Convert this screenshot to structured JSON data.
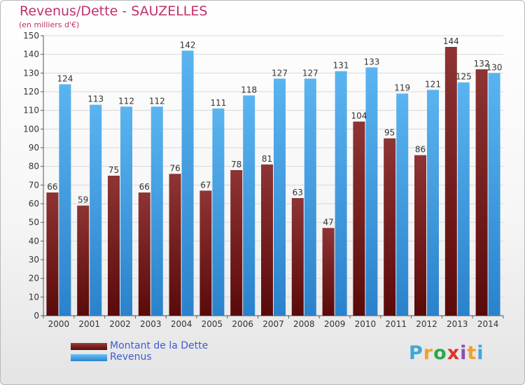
{
  "header": {
    "title": "Revenus/Dette - SAUZELLES",
    "subtitle": "(en milliers d'€)"
  },
  "legend": [
    {
      "label": "Montant de la Dette",
      "color": "#7a1c1c"
    },
    {
      "label": "Revenus",
      "color": "#4aa3e6"
    }
  ],
  "logo": {
    "letters": [
      "P",
      "r",
      "o",
      "x",
      "i",
      "t",
      "i"
    ],
    "colors": [
      "#3fa7d6",
      "#f0a12a",
      "#2aa84a",
      "#e0322a",
      "#8a4fb0",
      "#f0a12a",
      "#3fa7d6"
    ]
  },
  "chart_data": {
    "type": "bar",
    "title": "Revenus/Dette - SAUZELLES",
    "ylabel": "(en milliers d'€)",
    "categories": [
      "2000",
      "2001",
      "2002",
      "2003",
      "2004",
      "2005",
      "2006",
      "2007",
      "2008",
      "2009",
      "2010",
      "2011",
      "2012",
      "2013",
      "2014"
    ],
    "series": [
      {
        "name": "Montant de la Dette",
        "color": "#7a1c1c",
        "values": [
          66,
          59,
          75,
          66,
          76,
          67,
          78,
          81,
          63,
          47,
          104,
          95,
          86,
          144,
          132
        ]
      },
      {
        "name": "Revenus",
        "color": "#4aa3e6",
        "values": [
          124,
          113,
          112,
          112,
          142,
          111,
          118,
          127,
          127,
          131,
          133,
          119,
          121,
          125,
          130
        ]
      }
    ],
    "ylim": [
      0,
      150
    ],
    "yticks": [
      0,
      10,
      20,
      30,
      40,
      50,
      60,
      70,
      80,
      90,
      100,
      110,
      120,
      130,
      140,
      150
    ],
    "grid": true,
    "legend_position": "bottom-left"
  }
}
